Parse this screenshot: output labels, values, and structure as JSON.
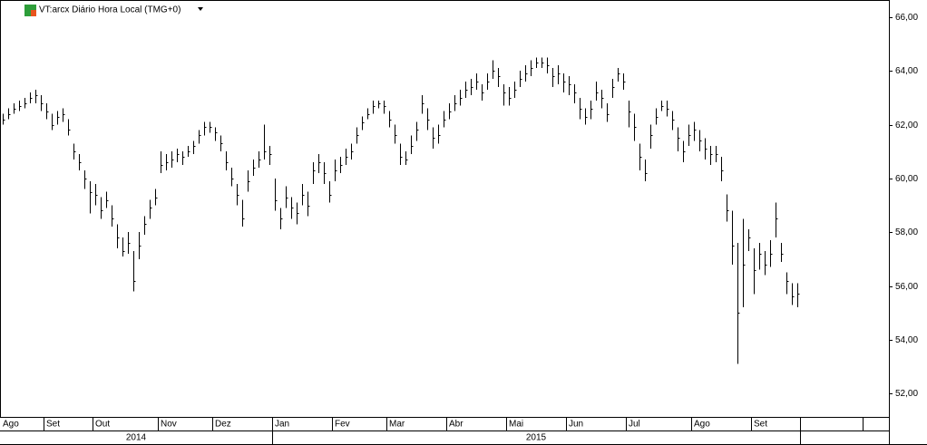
{
  "chart_data": {
    "type": "ohlc",
    "title": "VT:arcx Diário Hora Local (TMG+0)",
    "ylim": [
      51.5,
      66.5
    ],
    "yticks": [
      {
        "value": 52,
        "label": "52,00"
      },
      {
        "value": 54,
        "label": "54,00"
      },
      {
        "value": 56,
        "label": "56,00"
      },
      {
        "value": 58,
        "label": "58,00"
      },
      {
        "value": 60,
        "label": "60,00"
      },
      {
        "value": 62,
        "label": "62,00"
      },
      {
        "value": 64,
        "label": "64,00"
      },
      {
        "value": 66,
        "label": "66,00"
      }
    ],
    "color": "#000000",
    "years": [
      {
        "label": "2014",
        "months": [
          {
            "label": "Ago",
            "bars": [
              [
                62.4,
                62.0,
                62.2
              ],
              [
                62.6,
                62.2,
                62.4
              ],
              [
                62.8,
                62.4,
                62.6
              ],
              [
                62.9,
                62.5,
                62.7
              ],
              [
                63.0,
                62.6,
                62.8
              ],
              [
                63.2,
                62.8,
                63.0
              ],
              [
                63.3,
                62.8,
                63.1
              ],
              [
                63.1,
                62.5,
                62.8
              ]
            ]
          },
          {
            "label": "Set",
            "bars": [
              [
                62.8,
                62.2,
                62.5
              ],
              [
                62.4,
                61.8,
                62.0
              ],
              [
                62.5,
                62.0,
                62.3
              ],
              [
                62.6,
                62.1,
                62.4
              ],
              [
                62.2,
                61.6,
                61.8
              ],
              [
                61.3,
                60.7,
                61.0
              ],
              [
                60.9,
                60.3,
                60.6
              ],
              [
                60.3,
                59.6,
                60.0
              ],
              [
                59.9,
                58.7,
                59.5
              ]
            ]
          },
          {
            "label": "Out",
            "bars": [
              [
                59.8,
                59.0,
                59.4
              ],
              [
                59.3,
                58.5,
                58.8
              ],
              [
                59.5,
                58.9,
                59.2
              ],
              [
                59.0,
                58.2,
                58.5
              ],
              [
                58.3,
                57.4,
                57.8
              ],
              [
                57.8,
                57.1,
                57.3
              ],
              [
                58.0,
                57.2,
                57.6
              ],
              [
                57.3,
                55.8,
                56.2
              ],
              [
                58.0,
                57.0,
                57.5
              ],
              [
                58.6,
                57.9,
                58.3
              ],
              [
                59.2,
                58.5,
                58.9
              ],
              [
                59.6,
                59.0,
                59.3
              ]
            ]
          },
          {
            "label": "Nov",
            "bars": [
              [
                61.0,
                60.2,
                60.5
              ],
              [
                60.9,
                60.3,
                60.6
              ],
              [
                61.0,
                60.4,
                60.7
              ],
              [
                61.1,
                60.6,
                60.9
              ],
              [
                61.0,
                60.5,
                60.8
              ],
              [
                61.2,
                60.8,
                61.0
              ],
              [
                61.4,
                60.9,
                61.2
              ],
              [
                61.8,
                61.3,
                61.6
              ],
              [
                62.1,
                61.6,
                61.9
              ],
              [
                62.1,
                61.7,
                61.9
              ]
            ]
          },
          {
            "label": "Dez",
            "bars": [
              [
                61.9,
                61.4,
                61.7
              ],
              [
                61.6,
                61.0,
                61.3
              ],
              [
                61.0,
                60.3,
                60.6
              ],
              [
                60.4,
                59.7,
                60.0
              ],
              [
                59.8,
                59.0,
                59.4
              ],
              [
                59.2,
                58.2,
                58.5
              ],
              [
                60.3,
                59.5,
                59.9
              ],
              [
                60.7,
                60.1,
                60.4
              ],
              [
                61.0,
                60.4,
                60.7
              ],
              [
                62.0,
                60.7,
                61.0
              ],
              [
                61.2,
                60.5,
                60.9
              ]
            ]
          }
        ]
      },
      {
        "label": "2015",
        "months": [
          {
            "label": "Jan",
            "bars": [
              [
                60.0,
                58.8,
                59.2
              ],
              [
                58.9,
                58.1,
                58.5
              ],
              [
                59.7,
                58.9,
                59.3
              ],
              [
                59.3,
                58.5,
                58.9
              ],
              [
                59.1,
                58.3,
                58.7
              ],
              [
                59.8,
                59.0,
                59.4
              ],
              [
                59.5,
                58.6,
                59.0
              ],
              [
                60.6,
                59.8,
                60.3
              ],
              [
                60.9,
                60.2,
                60.6
              ],
              [
                60.6,
                59.8,
                60.2
              ],
              [
                59.9,
                59.1,
                59.4
              ]
            ]
          },
          {
            "label": "Fev",
            "bars": [
              [
                60.7,
                59.9,
                60.3
              ],
              [
                60.8,
                60.2,
                60.5
              ],
              [
                61.1,
                60.5,
                60.8
              ],
              [
                61.3,
                60.7,
                61.0
              ],
              [
                61.9,
                61.3,
                61.6
              ],
              [
                62.3,
                61.8,
                62.1
              ],
              [
                62.6,
                62.2,
                62.4
              ],
              [
                62.9,
                62.4,
                62.7
              ],
              [
                62.9,
                62.6,
                62.8
              ],
              [
                62.9,
                62.4,
                62.7
              ]
            ]
          },
          {
            "label": "Mar",
            "bars": [
              [
                62.5,
                61.9,
                62.2
              ],
              [
                62.0,
                61.3,
                61.6
              ],
              [
                61.3,
                60.5,
                60.8
              ],
              [
                61.0,
                60.5,
                60.7
              ],
              [
                61.6,
                60.9,
                61.2
              ],
              [
                62.1,
                61.4,
                61.8
              ],
              [
                63.1,
                62.4,
                62.8
              ],
              [
                62.6,
                61.8,
                62.2
              ],
              [
                61.9,
                61.1,
                61.5
              ],
              [
                62.0,
                61.3,
                61.6
              ],
              [
                62.5,
                61.9,
                62.2
              ]
            ]
          },
          {
            "label": "Abr",
            "bars": [
              [
                62.8,
                62.2,
                62.5
              ],
              [
                63.1,
                62.5,
                62.8
              ],
              [
                63.3,
                62.7,
                63.0
              ],
              [
                63.6,
                63.0,
                63.3
              ],
              [
                63.7,
                63.1,
                63.4
              ],
              [
                63.9,
                63.3,
                63.6
              ],
              [
                63.5,
                62.9,
                63.2
              ],
              [
                63.9,
                63.3,
                63.6
              ],
              [
                64.4,
                63.7,
                64.0
              ],
              [
                64.1,
                63.4,
                63.8
              ],
              [
                63.5,
                62.7,
                63.2
              ]
            ]
          },
          {
            "label": "Mai",
            "bars": [
              [
                63.4,
                62.7,
                63.0
              ],
              [
                63.6,
                63.0,
                63.3
              ],
              [
                64.0,
                63.4,
                63.7
              ],
              [
                64.2,
                63.6,
                63.9
              ],
              [
                64.4,
                63.8,
                64.1
              ],
              [
                64.5,
                64.1,
                64.3
              ],
              [
                64.5,
                64.1,
                64.3
              ],
              [
                64.5,
                63.9,
                64.2
              ],
              [
                64.1,
                63.4,
                63.8
              ],
              [
                64.2,
                63.5,
                63.9
              ],
              [
                63.9,
                63.2,
                63.6
              ]
            ]
          },
          {
            "label": "Jun",
            "bars": [
              [
                63.8,
                63.1,
                63.5
              ],
              [
                63.5,
                62.8,
                63.2
              ],
              [
                63.0,
                62.2,
                62.6
              ],
              [
                62.6,
                62.0,
                62.3
              ],
              [
                62.9,
                62.2,
                62.6
              ],
              [
                63.6,
                62.9,
                63.2
              ],
              [
                63.3,
                62.6,
                63.0
              ],
              [
                62.8,
                62.1,
                62.4
              ],
              [
                63.7,
                63.0,
                63.4
              ],
              [
                64.1,
                63.6,
                63.9
              ],
              [
                63.9,
                63.3,
                63.6
              ]
            ]
          },
          {
            "label": "Jul",
            "bars": [
              [
                62.9,
                61.9,
                62.5
              ],
              [
                62.4,
                61.4,
                61.9
              ],
              [
                61.3,
                60.3,
                60.8
              ],
              [
                60.7,
                59.9,
                60.2
              ],
              [
                62.0,
                61.1,
                61.6
              ],
              [
                62.6,
                62.0,
                62.3
              ],
              [
                62.9,
                62.5,
                62.7
              ],
              [
                62.9,
                62.3,
                62.6
              ],
              [
                62.5,
                61.8,
                62.2
              ],
              [
                61.9,
                61.0,
                61.5
              ],
              [
                61.4,
                60.6,
                61.0
              ],
              [
                62.0,
                61.2,
                61.6
              ]
            ]
          },
          {
            "label": "Ago",
            "bars": [
              [
                62.1,
                61.4,
                61.8
              ],
              [
                61.8,
                61.0,
                61.4
              ],
              [
                61.5,
                60.7,
                61.1
              ],
              [
                61.2,
                60.5,
                60.9
              ],
              [
                61.2,
                60.6,
                60.9
              ],
              [
                60.8,
                59.9,
                60.3
              ],
              [
                59.4,
                58.4,
                58.8
              ],
              [
                58.8,
                56.8,
                57.5
              ],
              [
                57.6,
                53.1,
                55.0
              ],
              [
                58.5,
                55.2,
                56.8
              ],
              [
                58.1,
                57.3,
                57.8
              ]
            ]
          },
          {
            "label": "Set",
            "bars": [
              [
                57.4,
                55.7,
                56.6
              ],
              [
                57.6,
                56.6,
                57.2
              ],
              [
                57.3,
                56.4,
                56.8
              ],
              [
                57.7,
                56.7,
                57.2
              ],
              [
                59.1,
                57.8,
                58.5
              ],
              [
                57.6,
                56.9,
                57.2
              ],
              [
                56.5,
                55.7,
                56.2
              ],
              [
                56.1,
                55.3,
                55.6
              ],
              [
                56.1,
                55.2,
                55.7
              ]
            ]
          }
        ]
      }
    ]
  }
}
